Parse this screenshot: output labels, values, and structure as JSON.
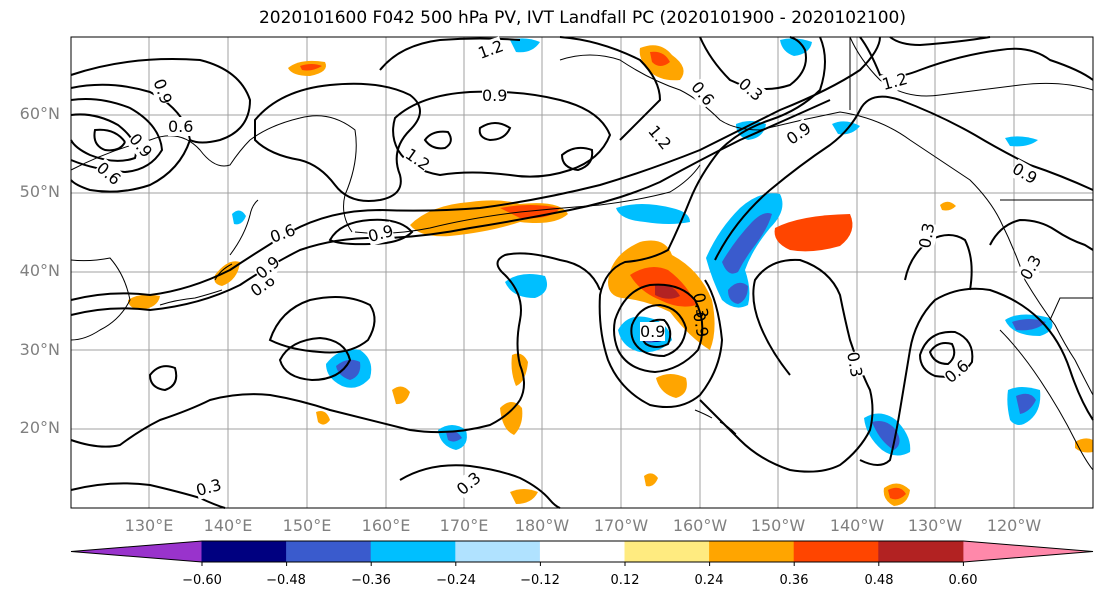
{
  "title": "2020101600 F042 500 hPa PV, IVT Landfall PC (2020101900 - 2020102100)",
  "map": {
    "lat_labels": [
      "60°N",
      "50°N",
      "40°N",
      "30°N",
      "20°N"
    ],
    "lon_labels": [
      "130°E",
      "140°E",
      "150°E",
      "160°E",
      "170°E",
      "180°W",
      "170°W",
      "160°W",
      "150°W",
      "140°W",
      "130°W",
      "120°W"
    ],
    "contour_labels": [
      "1.2",
      "0.9",
      "0.6",
      "0.3",
      "0.6",
      "1.2",
      "0.9",
      "0.9",
      "0.6",
      "0.9",
      "0.6",
      "0.9",
      "0.6",
      "1.2",
      "1.2",
      "0.9",
      "0.3",
      "0.9",
      "0.3",
      "0.3",
      "0.6",
      "0.3",
      "0.3",
      "0.9",
      "0.3",
      "0.9"
    ],
    "colors": {
      "contour": "#000000",
      "grid": "#a0a0a0",
      "coast": "#000000"
    }
  },
  "colorbar": {
    "colors": [
      "#9933cc",
      "#000080",
      "#3a5bcd",
      "#00bfff",
      "#b0e2ff",
      "#ffffff",
      "#ffeb80",
      "#ffa500",
      "#ff4500",
      "#b22222",
      "#ff88aa"
    ],
    "tick_labels": [
      "−0.60",
      "−0.48",
      "−0.36",
      "−0.24",
      "−0.12",
      "0.12",
      "0.24",
      "0.36",
      "0.48",
      "0.60"
    ]
  }
}
